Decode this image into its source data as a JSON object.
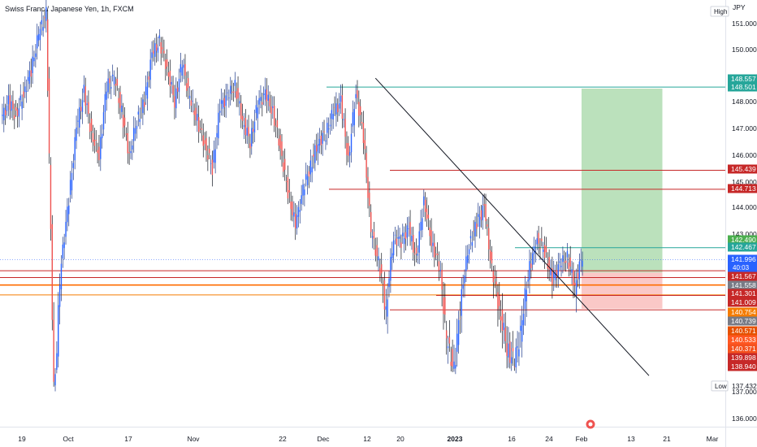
{
  "chart_data": {
    "type": "candlestick",
    "title": "Swiss Franc / Japanese Yen, 1h, FXCM",
    "currency": "JPY",
    "price_range": [
      135.5,
      151.5
    ],
    "y_ticks": [
      "151.000",
      "150.000",
      "148.000",
      "147.000",
      "146.000",
      "145.000",
      "144.000",
      "143.000",
      "137.000",
      "136.000"
    ],
    "x_ticks": [
      "19",
      "Oct",
      "17",
      "Nov",
      "22",
      "Dec",
      "12",
      "20",
      "2023",
      "16",
      "24",
      "Feb",
      "13",
      "21",
      "Mar"
    ],
    "high_label": "High",
    "low_label": "Low",
    "low_value": "137.432",
    "countdown": "40:03",
    "price_tags": [
      {
        "value": "148.557",
        "bg": "#26a69a"
      },
      {
        "value": "148.501",
        "bg": "#26a69a"
      },
      {
        "value": "145.439",
        "bg": "#c62828"
      },
      {
        "value": "144.713",
        "bg": "#c62828"
      },
      {
        "value": "142.490",
        "bg": "#4caf50"
      },
      {
        "value": "142.467",
        "bg": "#26a69a"
      },
      {
        "value": "141.996",
        "bg": "#2962ff"
      },
      {
        "value": "141.567",
        "bg": "#c62828"
      },
      {
        "value": "141.558",
        "bg": "#787b86"
      },
      {
        "value": "141.301",
        "bg": "#c62828"
      },
      {
        "value": "141.009",
        "bg": "#c62828"
      },
      {
        "value": "140.754",
        "bg": "#f57c00"
      },
      {
        "value": "140.739",
        "bg": "#787b86"
      },
      {
        "value": "140.571",
        "bg": "#e65100"
      },
      {
        "value": "140.533",
        "bg": "#ff5722"
      },
      {
        "value": "140.371",
        "bg": "#f4511e"
      },
      {
        "value": "139.898",
        "bg": "#c62828"
      },
      {
        "value": "138.940",
        "bg": "#c62828"
      }
    ],
    "horizontal_lines": [
      {
        "price": 148.557,
        "color": "#26a69a"
      },
      {
        "price": 145.439,
        "color": "#c62828"
      },
      {
        "price": 144.713,
        "color": "#c62828"
      },
      {
        "price": 142.467,
        "color": "#26a69a"
      },
      {
        "price": 141.567,
        "color": "#c62828"
      },
      {
        "price": 141.301,
        "color": "#c62828"
      },
      {
        "price": 141.009,
        "color": "#ff6d00"
      },
      {
        "price": 140.754,
        "color": "#f57c00"
      },
      {
        "price": 140.739,
        "color": "#c62828"
      },
      {
        "price": 140.371,
        "color": "#c62828"
      }
    ],
    "current_price": 141.996,
    "trendline": {
      "from_date": "2022-12-14",
      "from_price": 148.9,
      "to_date": "2023-02-17",
      "to_price": 138.2
    },
    "position": {
      "entry": 141.5,
      "target": 148.5,
      "stop": 140.4,
      "start_date": "2023-02-01",
      "end_date": "2023-02-20"
    },
    "close_series": [
      147.3,
      148.0,
      147.5,
      148.3,
      149.2,
      150.6,
      151.4,
      137.6,
      142.0,
      144.3,
      147.0,
      148.4,
      146.8,
      146.0,
      148.6,
      148.9,
      147.6,
      146.0,
      147.3,
      148.0,
      149.8,
      150.3,
      149.3,
      148.0,
      149.5,
      148.1,
      147.3,
      146.4,
      145.5,
      147.8,
      148.2,
      148.6,
      147.3,
      146.5,
      147.9,
      148.3,
      147.6,
      146.3,
      144.6,
      143.3,
      144.7,
      145.6,
      146.5,
      146.8,
      147.6,
      148.0,
      145.8,
      148.4,
      146.7,
      143.1,
      141.9,
      140.3,
      142.9,
      142.7,
      143.2,
      142.0,
      144.3,
      142.7,
      141.8,
      139.6,
      138.8,
      140.8,
      142.6,
      143.4,
      144.0,
      141.6,
      140.4,
      139.4,
      139.0,
      140.0,
      141.7,
      142.8,
      142.3,
      141.2,
      141.8,
      142.1,
      141.0,
      142.2
    ]
  }
}
